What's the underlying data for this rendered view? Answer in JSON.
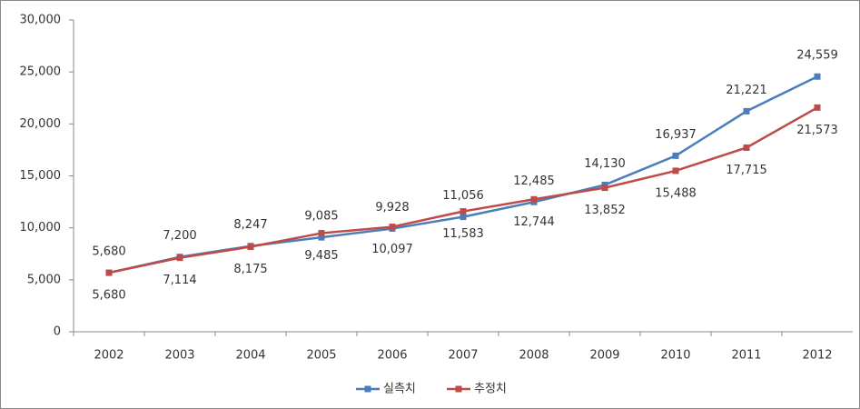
{
  "chart_data": {
    "type": "line",
    "categories": [
      "2002",
      "2003",
      "2004",
      "2005",
      "2006",
      "2007",
      "2008",
      "2009",
      "2010",
      "2011",
      "2012"
    ],
    "series": [
      {
        "name": "실측치",
        "color": "#4a7ebb",
        "values": [
          5680,
          7200,
          8247,
          9085,
          9928,
          11056,
          12485,
          14130,
          16937,
          21221,
          24559
        ],
        "value_labels": [
          "5,680",
          "7,200",
          "8,247",
          "9,085",
          "9,928",
          "11,056",
          "12,485",
          "14,130",
          "16,937",
          "21,221",
          "24,559"
        ]
      },
      {
        "name": "추정치",
        "color": "#be4b48",
        "values": [
          5680,
          7114,
          8175,
          9485,
          10097,
          11583,
          12744,
          13852,
          15488,
          17715,
          21573
        ],
        "value_labels": [
          "5,680",
          "7,114",
          "8,175",
          "9,485",
          "10,097",
          "11,583",
          "12,744",
          "13,852",
          "15,488",
          "17,715",
          "21,573"
        ]
      }
    ],
    "ylim": [
      0,
      30000
    ],
    "yticks": [
      0,
      {
        "value": 5000,
        "label": "5,000"
      },
      {
        "value": 10000,
        "label": "10,000"
      },
      {
        "value": 15000,
        "label": "15,000"
      },
      {
        "value": 20000,
        "label": "20,000"
      },
      {
        "value": 25000,
        "label": "25,000"
      },
      {
        "value": 30000,
        "label": "30,000"
      }
    ],
    "legend": "bottom"
  }
}
